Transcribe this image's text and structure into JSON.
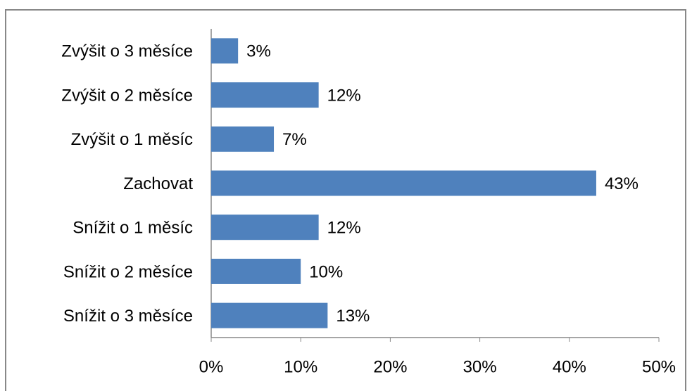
{
  "chart_data": {
    "type": "bar",
    "orientation": "horizontal",
    "categories": [
      "Zvýšit o 3 měsíce",
      "Zvýšit o 2 měsíce",
      "Zvýšit o 1 měsíc",
      "Zachovat",
      "Snížit o 1 měsíc",
      "Snížit o 2 měsíce",
      "Snížit o 3 měsíce"
    ],
    "values": [
      3,
      12,
      7,
      43,
      12,
      10,
      13
    ],
    "value_labels": [
      "3%",
      "12%",
      "7%",
      "43%",
      "12%",
      "10%",
      "13%"
    ],
    "color": "#4f81bd",
    "xlim": [
      0,
      50
    ],
    "xticks": [
      {
        "value": 0,
        "label": "0%"
      },
      {
        "value": 10,
        "label": "10%"
      },
      {
        "value": 20,
        "label": "20%"
      },
      {
        "value": 30,
        "label": "30%"
      },
      {
        "value": 40,
        "label": "40%"
      },
      {
        "value": 50,
        "label": "50%"
      }
    ],
    "grid": false
  }
}
